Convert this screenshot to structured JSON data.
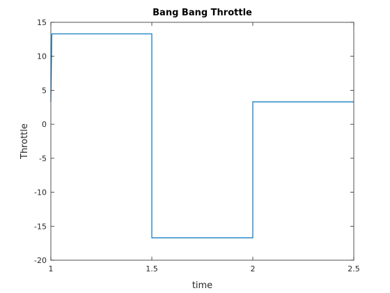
{
  "chart_data": {
    "type": "line",
    "title": "Bang Bang Throttle",
    "xlabel": "time",
    "ylabel": "Throttle",
    "xlim": [
      1,
      2.5
    ],
    "ylim": [
      -20,
      15
    ],
    "x_ticks": [
      1,
      1.5,
      2,
      2.5
    ],
    "x_tick_labels": [
      "1",
      "1.5",
      "2",
      "2.5"
    ],
    "y_ticks": [
      -20,
      -15,
      -10,
      -5,
      0,
      5,
      10,
      15
    ],
    "y_tick_labels": [
      "-20",
      "-15",
      "-10",
      "-5",
      "0",
      "5",
      "10",
      "15"
    ],
    "grid": false,
    "series": [
      {
        "color": "#0072bd",
        "x": [
          1,
          1.005,
          1.5,
          1.5,
          2,
          2,
          2.5
        ],
        "y": [
          3.3,
          13.3,
          13.3,
          -16.7,
          -16.7,
          3.3,
          3.3
        ]
      }
    ]
  }
}
